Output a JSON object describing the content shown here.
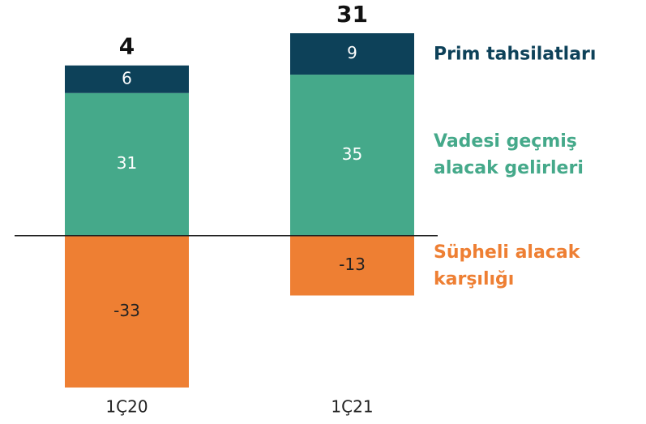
{
  "chart_data": {
    "type": "stacked_bar",
    "categories": [
      "1Ç20",
      "1Ç21"
    ],
    "series": [
      {
        "name": "Süpheli alacak karşılığı",
        "color": "#ee7f33",
        "values": [
          -33,
          -13
        ]
      },
      {
        "name": "Vadesi geçmiş alacak gelirleri",
        "color": "#45a98a",
        "values": [
          31,
          35
        ]
      },
      {
        "name": "Prim tahsilatları",
        "color": "#0d4159",
        "values": [
          6,
          9
        ]
      }
    ],
    "totals": [
      4,
      31
    ]
  }
}
